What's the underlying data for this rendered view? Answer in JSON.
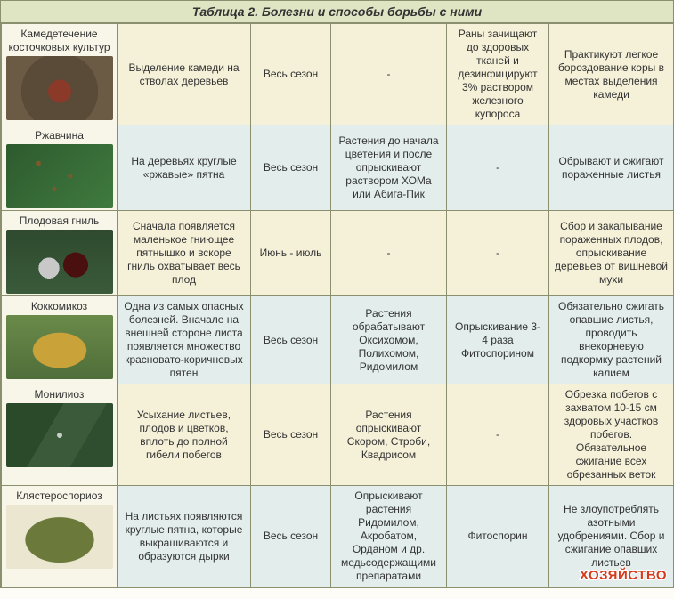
{
  "title": "Таблица 2. Болезни и способы борьбы с ними",
  "watermark": "ХОЗЯЙСТВО",
  "rows": [
    {
      "name": "Камедетечение косточковых культур",
      "thumb_class": "t1",
      "desc": "Выделение камеди на стволах деревьев",
      "period": "Весь сезон",
      "treat1": "-",
      "treat2": "Раны зачищают до здоровых тканей и дезинфицируют 3% раствором железного купороса",
      "treat3": "Практикуют легкое бороздование коры в местах выделения камеди",
      "row_class": "row-cream"
    },
    {
      "name": "Ржавчина",
      "thumb_class": "t2",
      "desc": "На деревьях круглые «ржавые» пятна",
      "period": "Весь сезон",
      "treat1": "Растения до начала цветения и после опрыскивают раствором ХОМа или Абига-Пик",
      "treat2": "-",
      "treat3": "Обрывают и сжигают пораженные листья",
      "row_class": "row-blue"
    },
    {
      "name": "Плодовая гниль",
      "thumb_class": "t3",
      "desc": "Сначала появляется маленькое гниющее пятнышко и вскоре гниль охватывает весь плод",
      "period": "Июнь - июль",
      "treat1": "-",
      "treat2": "-",
      "treat3": "Сбор и закапывание пораженных плодов, опрыскивание деревьев от вишневой мухи",
      "row_class": "row-cream"
    },
    {
      "name": "Коккомикоз",
      "thumb_class": "t4",
      "desc": "Одна из самых опасных болезней. Вначале на внешней стороне листа появляется множество красновато-коричневых пятен",
      "period": "Весь сезон",
      "treat1": "Растения обрабатывают Оксихомом, Полихомом, Ридомилом",
      "treat2": "Опрыскивание 3-4 раза Фитоспорином",
      "treat3": "Обязательно сжигать опавшие листья, проводить внекорневую подкормку растений калием",
      "row_class": "row-blue"
    },
    {
      "name": "Монилиоз",
      "thumb_class": "t5",
      "desc": "Усыхание листьев, плодов и цветков, вплоть до полной гибели побегов",
      "period": "Весь сезон",
      "treat1": "Растения опрыскивают Скором, Строби, Квадрисом",
      "treat2": "-",
      "treat3": "Обрезка побегов с захватом 10-15 см здоровых участков побегов. Обязательное сжигание всех обрезанных веток",
      "row_class": "row-cream"
    },
    {
      "name": "Клястероспориоз",
      "thumb_class": "t6",
      "desc": "На листьях появляются круглые пятна, которые выкрашиваются и образуются дырки",
      "period": "Весь сезон",
      "treat1": "Опрыскивают растения Ридомилом, Акробатом, Орданом и др. медьсодержащими препаратами",
      "treat2": "Фитоспорин",
      "treat3": "Не злоупотреблять азотными удобрениями. Сбор и сжигание опавших листьев",
      "row_class": "row-blue"
    }
  ]
}
